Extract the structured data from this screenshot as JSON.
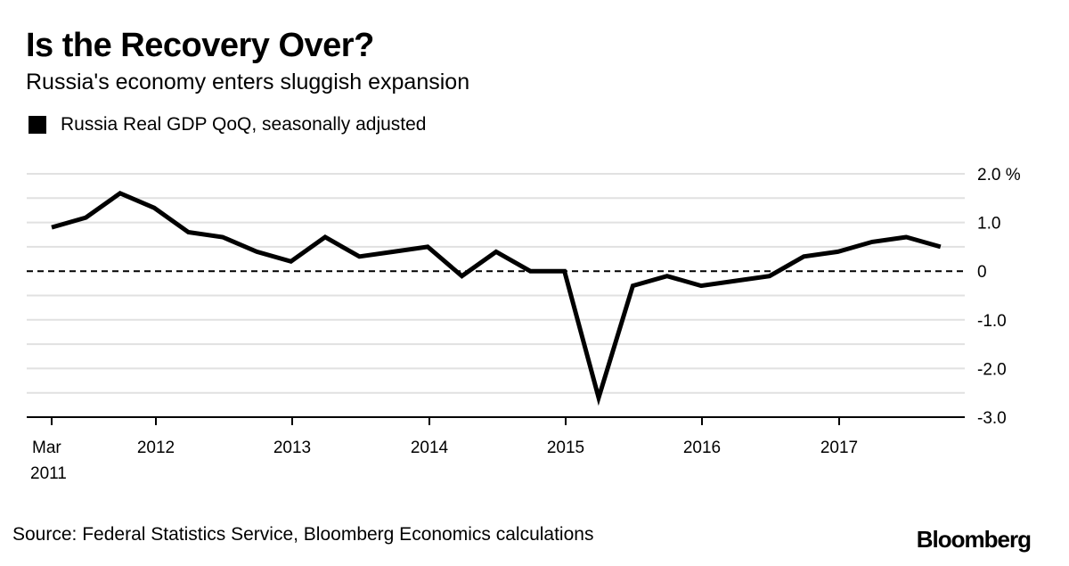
{
  "header": {
    "title": "Is the Recovery Over?",
    "subtitle": "Russia's economy enters sluggish expansion"
  },
  "legend": {
    "items": [
      {
        "label": "Russia Real GDP QoQ, seasonally adjusted",
        "color": "#000000"
      }
    ]
  },
  "footer": {
    "source": "Source: Federal Statistics Service, Bloomberg Economics calculations",
    "logo": "Bloomberg"
  },
  "chart_data": {
    "type": "line",
    "title": "Is the Recovery Over?",
    "subtitle": "Russia's economy enters sluggish expansion",
    "xlabel": "",
    "ylabel": "%",
    "ylim": [
      -3.0,
      2.0
    ],
    "yticks": [
      2.0,
      1.0,
      0,
      -1.0,
      -2.0,
      -3.0
    ],
    "ytick_labels": [
      "2.0 %",
      "1.0",
      "0",
      "-1.0",
      "-2.0",
      "-3.0"
    ],
    "minor_grid": [
      1.5,
      0.5,
      -0.5,
      -1.5,
      -2.5
    ],
    "xtick_labels": [
      "Mar 2011",
      "2012",
      "2013",
      "2014",
      "2015",
      "2016",
      "2017"
    ],
    "grid": true,
    "zero_line": "dashed",
    "legend_position": "top-left",
    "series": [
      {
        "name": "Russia Real GDP QoQ, seasonally adjusted",
        "color": "#000000",
        "x": [
          "2011-Q1",
          "2011-Q2",
          "2011-Q3",
          "2011-Q4",
          "2012-Q1",
          "2012-Q2",
          "2012-Q3",
          "2012-Q4",
          "2013-Q1",
          "2013-Q2",
          "2013-Q3",
          "2013-Q4",
          "2014-Q1",
          "2014-Q2",
          "2014-Q3",
          "2014-Q4",
          "2015-Q1",
          "2015-Q2",
          "2015-Q3",
          "2015-Q4",
          "2016-Q1",
          "2016-Q2",
          "2016-Q3",
          "2016-Q4",
          "2017-Q1",
          "2017-Q2",
          "2017-Q3"
        ],
        "values": [
          0.9,
          1.1,
          1.6,
          1.3,
          0.8,
          0.7,
          0.4,
          0.2,
          0.7,
          0.3,
          0.4,
          0.5,
          -0.1,
          0.4,
          0.0,
          0.0,
          -2.6,
          -0.3,
          -0.1,
          -0.3,
          -0.2,
          -0.1,
          0.3,
          0.4,
          0.6,
          0.7,
          0.5
        ]
      }
    ]
  }
}
